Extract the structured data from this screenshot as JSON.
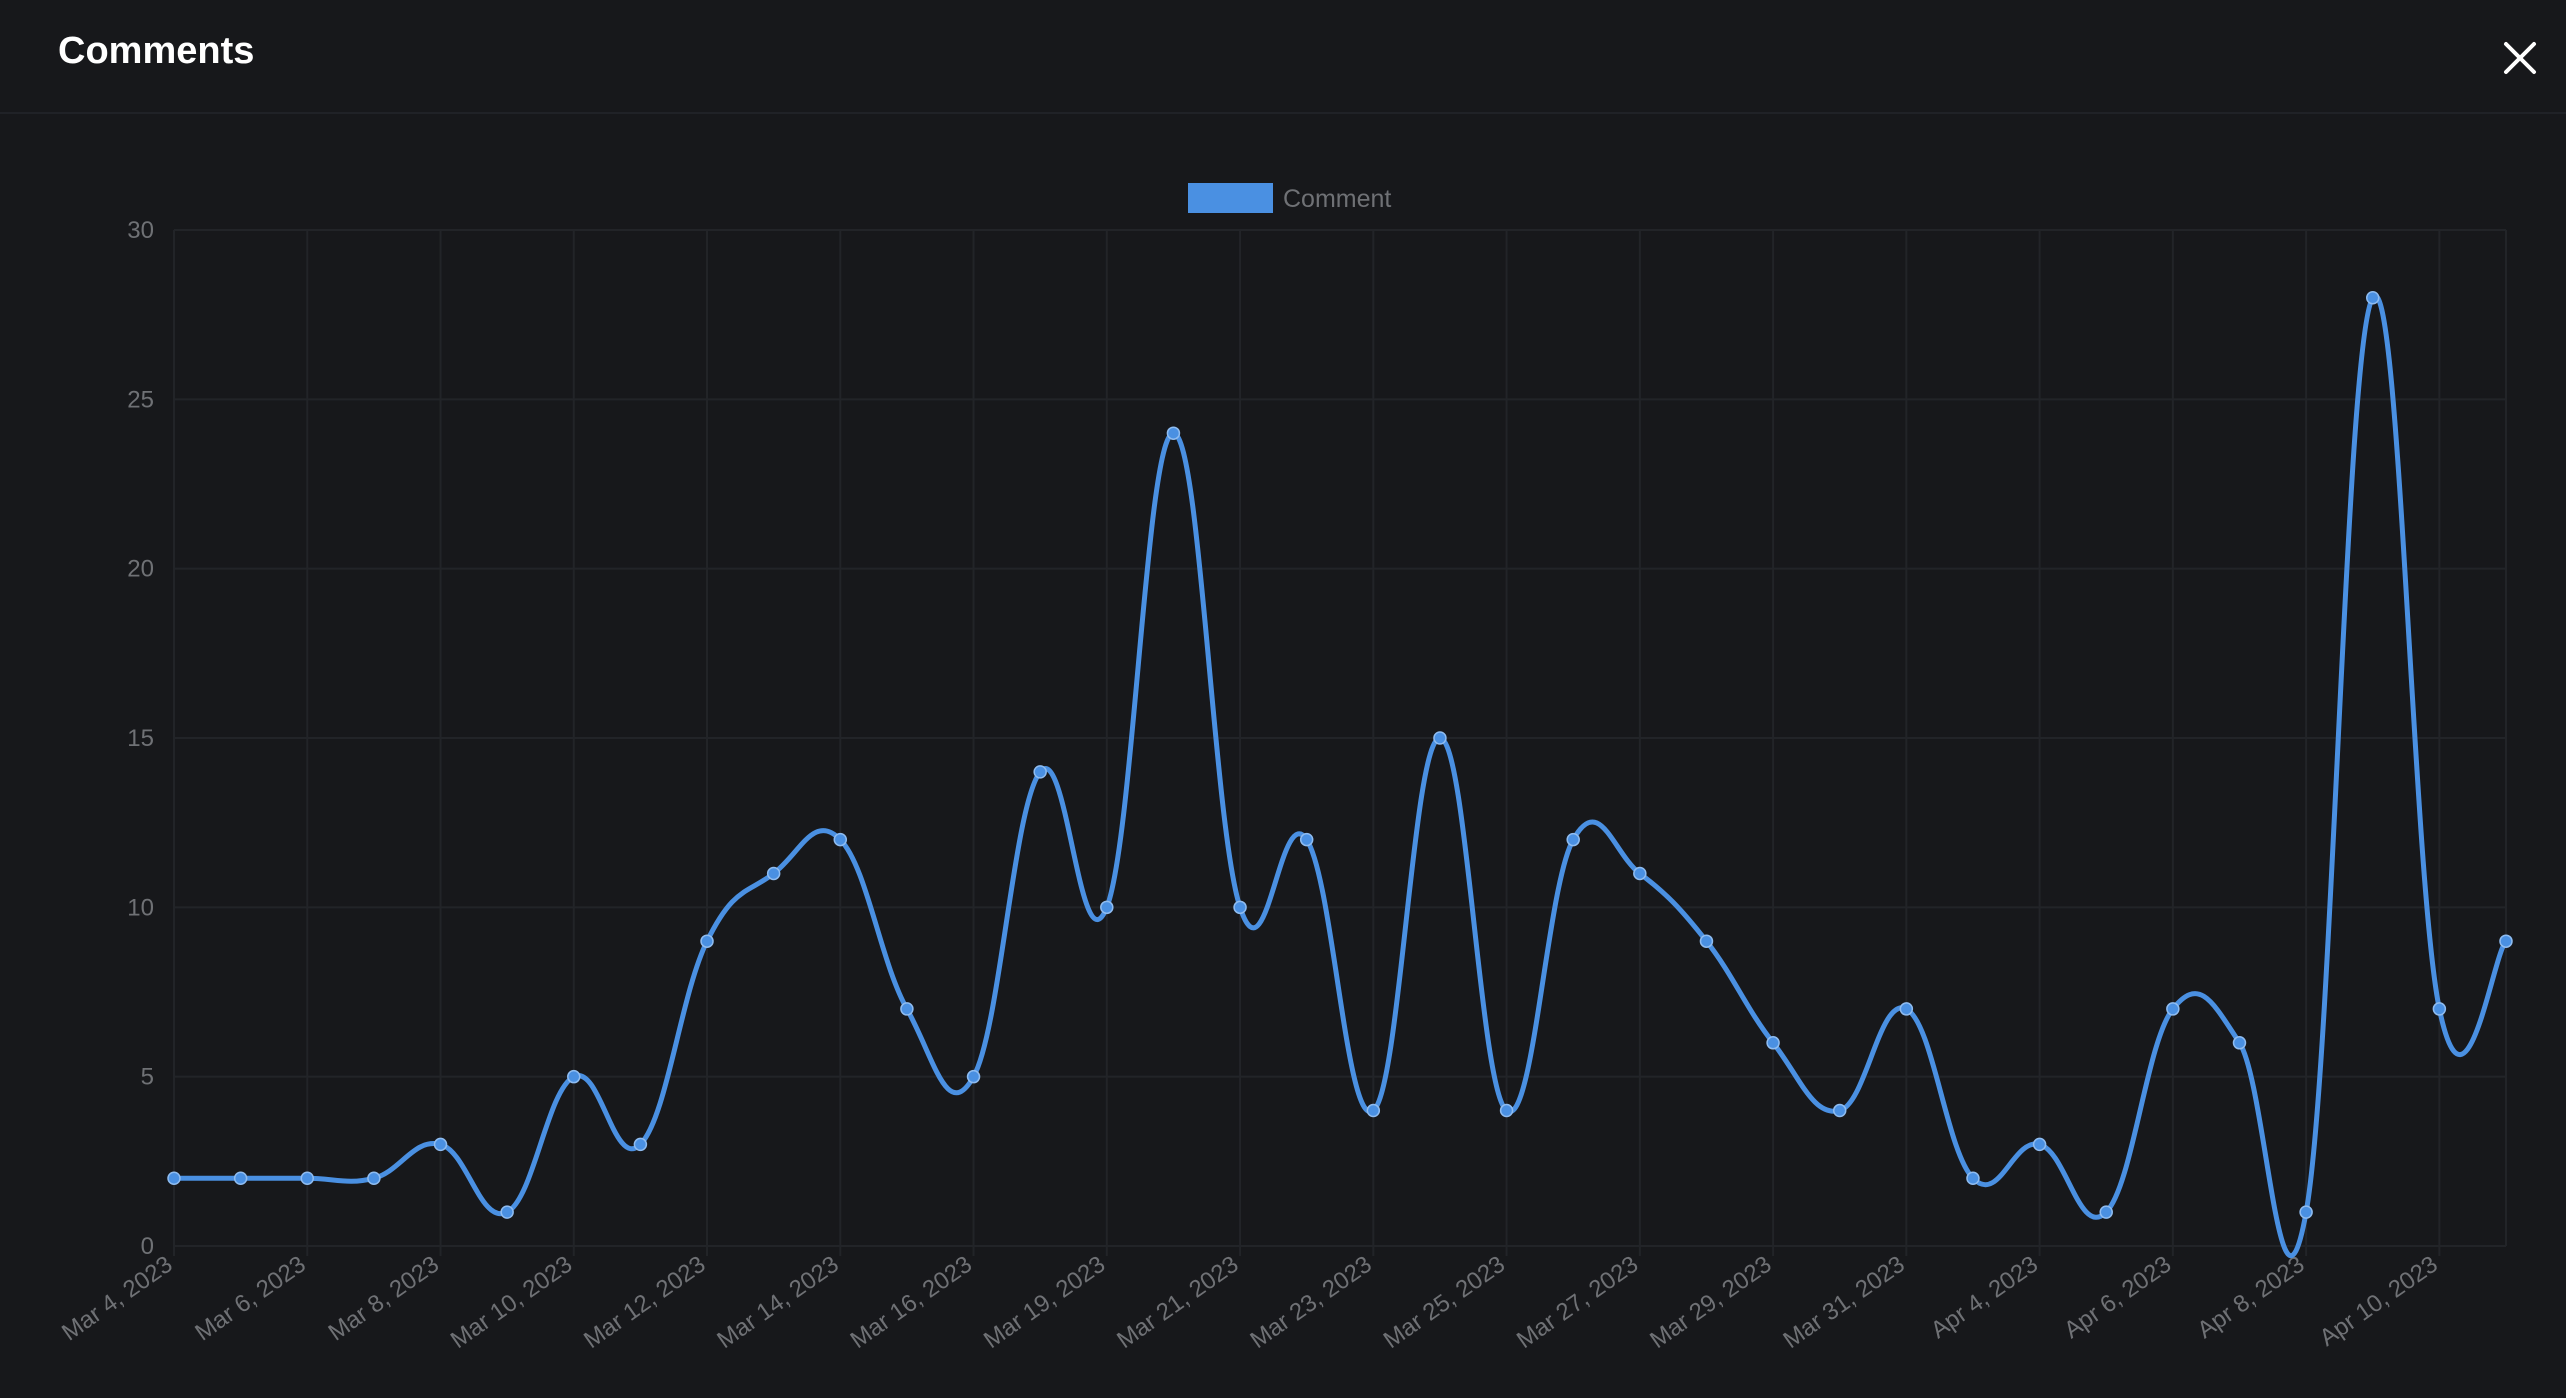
{
  "header": {
    "title": "Comments"
  },
  "colors": {
    "background": "#17181b",
    "accent": "#4a90e2",
    "grid": "#222428",
    "tick_text": "#6f7175"
  },
  "chart_data": {
    "type": "line",
    "smooth": true,
    "legend_position": "top-center",
    "grid": true,
    "series": [
      {
        "name": "Comment",
        "color": "#4a90e2",
        "values": [
          2,
          2,
          2,
          2,
          3,
          1,
          5,
          3,
          9,
          11,
          12,
          7,
          5,
          14,
          10,
          24,
          10,
          12,
          4,
          15,
          4,
          12,
          11,
          9,
          6,
          4,
          7,
          2,
          3,
          1,
          7,
          6,
          1,
          28,
          7,
          9
        ]
      }
    ],
    "x_tick_labels": [
      "Mar 4, 2023",
      "Mar 6, 2023",
      "Mar 8, 2023",
      "Mar 10, 2023",
      "Mar 12, 2023",
      "Mar 14, 2023",
      "Mar 16, 2023",
      "Mar 19, 2023",
      "Mar 21, 2023",
      "Mar 23, 2023",
      "Mar 25, 2023",
      "Mar 27, 2023",
      "Mar 29, 2023",
      "Mar 31, 2023",
      "Apr 4, 2023",
      "Apr 6, 2023",
      "Apr 8, 2023",
      "Apr 10, 2023"
    ],
    "y_ticks": [
      0,
      5,
      10,
      15,
      20,
      25,
      30
    ],
    "ylim": [
      0,
      30
    ]
  }
}
